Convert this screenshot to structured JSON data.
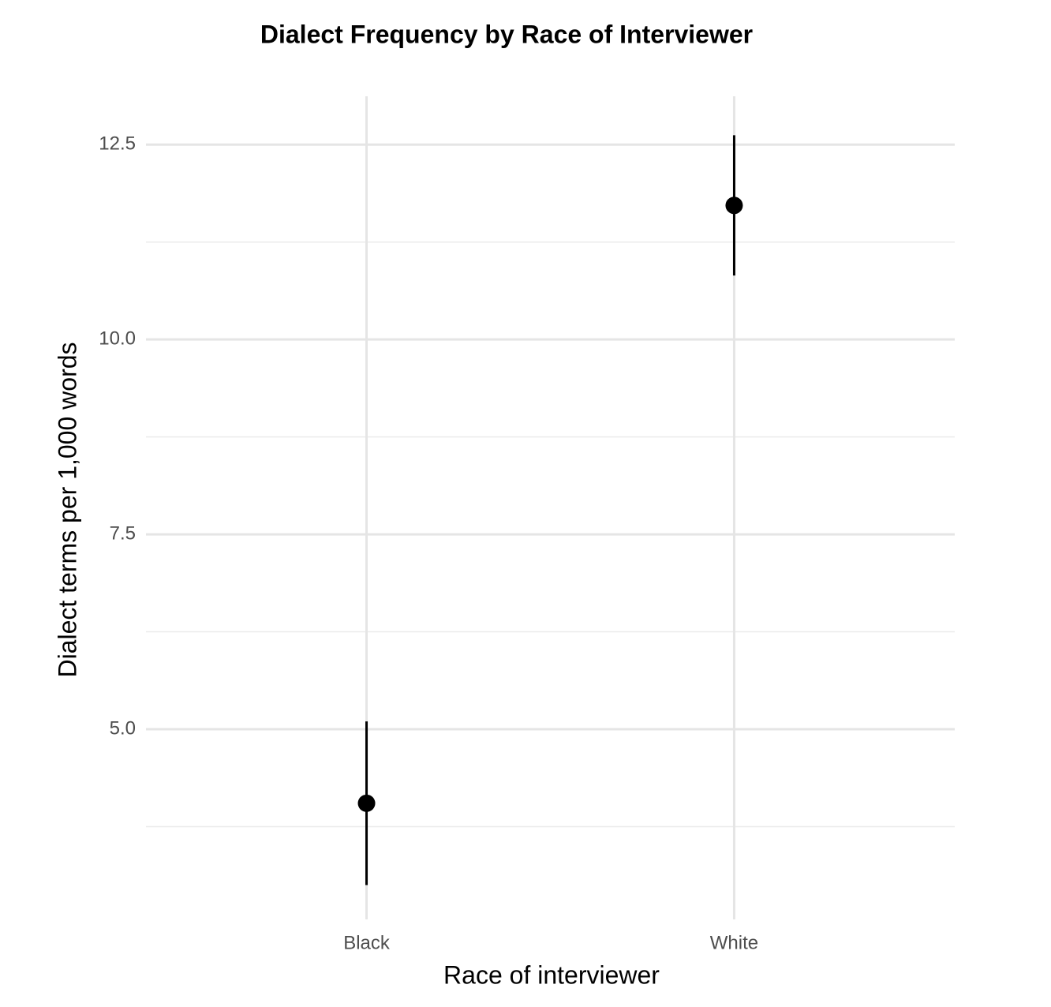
{
  "chart_data": {
    "type": "pointrange",
    "title": "Dialect Frequency by Race of Interviewer",
    "x_label": "Race of interviewer",
    "y_label": "Dialect terms per 1,000 words",
    "categories": [
      "Black",
      "White"
    ],
    "values": [
      4.05,
      11.72
    ],
    "errors": [
      1.05,
      0.9
    ],
    "color": "#000000",
    "ylim": [
      2.56,
      13.12
    ],
    "yticks": [
      5.0,
      7.5,
      10.0,
      12.5
    ],
    "ytick_labels": [
      "5.0",
      "7.5",
      "10.0",
      "12.5"
    ],
    "grid": true
  }
}
